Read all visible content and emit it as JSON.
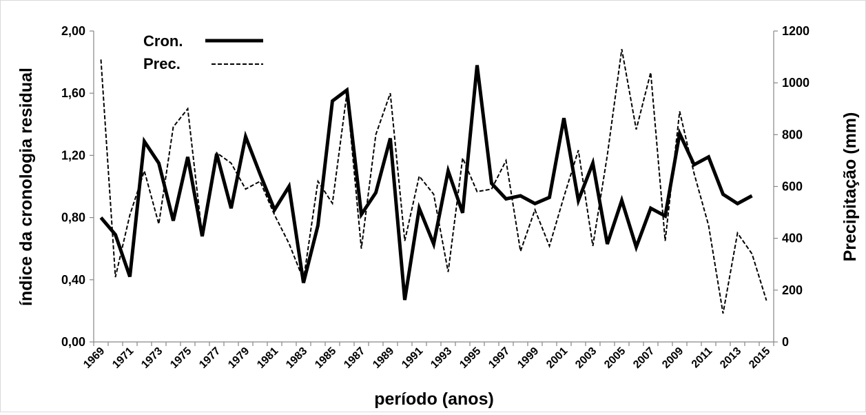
{
  "chart_data": {
    "type": "line",
    "xlabel": "período (anos)",
    "ylabel_left": "índice da cronologia residual",
    "ylabel_right": "Precipitação (mm)",
    "x_tick_labels": [
      "1969",
      "1971",
      "1973",
      "1975",
      "1977",
      "1979",
      "1981",
      "1983",
      "1985",
      "1987",
      "1989",
      "1991",
      "1993",
      "1995",
      "1997",
      "1999",
      "2001",
      "2003",
      "2005",
      "2007",
      "2009",
      "2011",
      "2013",
      "2015"
    ],
    "y_left_ticks": [
      "0,00",
      "0,40",
      "0,80",
      "1,20",
      "1,60",
      "2,00"
    ],
    "y_right_ticks": [
      "0",
      "200",
      "400",
      "600",
      "800",
      "1000",
      "1200"
    ],
    "y_left_lim": [
      0,
      2
    ],
    "y_right_lim": [
      0,
      1200
    ],
    "grid": false,
    "legend_position": "top-left",
    "years": [
      1969,
      1970,
      1971,
      1972,
      1973,
      1974,
      1975,
      1976,
      1977,
      1978,
      1979,
      1980,
      1981,
      1982,
      1983,
      1984,
      1985,
      1986,
      1987,
      1988,
      1989,
      1990,
      1991,
      1992,
      1993,
      1994,
      1995,
      1996,
      1997,
      1998,
      1999,
      2000,
      2001,
      2002,
      2003,
      2004,
      2005,
      2006,
      2007,
      2008,
      2009,
      2010,
      2011,
      2012,
      2013,
      2014,
      2015
    ],
    "series": [
      {
        "name": "Cron.",
        "axis": "left",
        "style": "solid",
        "values": [
          0.8,
          0.69,
          0.42,
          1.29,
          1.15,
          0.78,
          1.19,
          0.68,
          1.21,
          0.86,
          1.32,
          1.08,
          0.85,
          1.0,
          0.38,
          0.75,
          1.55,
          1.62,
          0.82,
          0.96,
          1.31,
          0.27,
          0.86,
          0.63,
          1.1,
          0.83,
          1.78,
          1.02,
          0.92,
          0.94,
          0.89,
          0.93,
          1.44,
          0.91,
          1.15,
          0.63,
          0.91,
          0.61,
          0.86,
          0.81,
          1.34,
          1.14,
          1.19,
          0.95,
          0.89,
          0.94,
          null
        ]
      },
      {
        "name": "Prec.",
        "axis": "right",
        "style": "dashed",
        "values": [
          1090,
          250,
          490,
          660,
          455,
          830,
          900,
          410,
          730,
          690,
          590,
          620,
          490,
          380,
          240,
          620,
          535,
          960,
          360,
          800,
          960,
          390,
          640,
          570,
          270,
          710,
          580,
          590,
          700,
          350,
          510,
          370,
          560,
          740,
          370,
          720,
          1130,
          820,
          1040,
          390,
          890,
          650,
          450,
          110,
          420,
          340,
          160
        ]
      }
    ]
  }
}
